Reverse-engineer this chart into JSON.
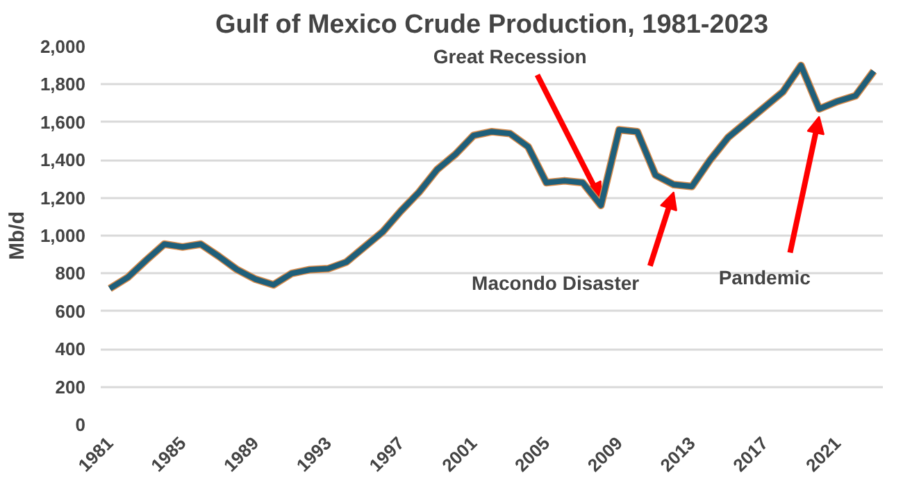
{
  "chart_data": {
    "type": "line",
    "title": "Gulf of Mexico Crude Production, 1981-2023",
    "ylabel": "Mb/d",
    "x": [
      1981,
      1982,
      1983,
      1984,
      1985,
      1986,
      1987,
      1988,
      1989,
      1990,
      1991,
      1992,
      1993,
      1994,
      1995,
      1996,
      1997,
      1998,
      1999,
      2000,
      2001,
      2002,
      2003,
      2004,
      2005,
      2006,
      2007,
      2008,
      2009,
      2010,
      2011,
      2012,
      2013,
      2014,
      2015,
      2016,
      2017,
      2018,
      2019,
      2020,
      2021,
      2022,
      2023
    ],
    "series": [
      {
        "color": "#1f5f7a",
        "values": [
          720,
          780,
          870,
          955,
          940,
          955,
          890,
          820,
          770,
          740,
          800,
          820,
          825,
          860,
          940,
          1020,
          1130,
          1230,
          1350,
          1430,
          1530,
          1550,
          1540,
          1470,
          1280,
          1290,
          1280,
          1160,
          1560,
          1550,
          1320,
          1270,
          1260,
          1400,
          1520,
          1600,
          1680,
          1760,
          1900,
          1670,
          1710,
          1740,
          1870
        ]
      }
    ],
    "xlim": [
      1980.5,
      2023.5
    ],
    "xticks": [
      1981,
      1985,
      1989,
      1993,
      1997,
      2001,
      2005,
      2009,
      2013,
      2017,
      2021
    ],
    "ylim": [
      0,
      2000
    ],
    "yticks": [
      0,
      {
        "value": 200,
        "label": "200"
      },
      {
        "value": 400,
        "label": "400"
      },
      {
        "value": 600,
        "label": "600"
      },
      {
        "value": 800,
        "label": "800"
      },
      {
        "value": 1000,
        "label": "1,000"
      },
      {
        "value": 1200,
        "label": "1,200"
      },
      {
        "value": 1400,
        "label": "1,400"
      },
      {
        "value": 1600,
        "label": "1,600"
      },
      {
        "value": 1800,
        "label": "1,800"
      },
      {
        "value": 2000,
        "label": "2,000"
      }
    ],
    "grid": "y",
    "marker": "none",
    "line_style": "solid",
    "annotations": [
      {
        "text": "Great Recession",
        "x": 2008,
        "y": 1160
      },
      {
        "text": "Macondo Disaster",
        "x": 2012,
        "y": 1270
      },
      {
        "text": "Pandemic",
        "x": 2020,
        "y": 1670
      }
    ]
  }
}
